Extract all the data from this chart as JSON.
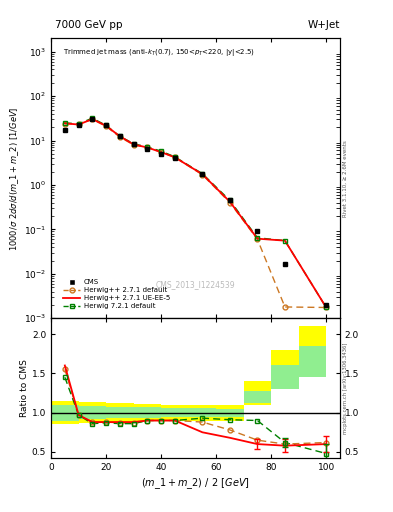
{
  "title_left": "7000 GeV pp",
  "title_right": "W+Jet",
  "inner_title": "Trimmed jet mass (anti-k_{T}(0.7), 150<p_{T}<220, |y|<2.5)",
  "ylabel_main": "1000/σ 2dσ/d(m_1 + m_2) [1/GeV]",
  "ylabel_ratio": "Ratio to CMS",
  "xlabel": "(m_1 + m_2) / 2 [GeV]",
  "watermark": "CMS_2013_I1224539",
  "right_label_main": "Rivet 3.1.10, ≥ 2.6M events",
  "right_label_ratio": "mcplots.cern.ch [arXiv:1306.3436]",
  "cms_x": [
    5,
    10,
    15,
    20,
    25,
    30,
    35,
    40,
    45,
    55,
    65,
    75,
    85,
    100
  ],
  "cms_y": [
    17.0,
    22.0,
    30.0,
    22.0,
    13.0,
    8.5,
    6.5,
    5.0,
    4.0,
    1.8,
    0.45,
    0.09,
    0.017,
    0.002
  ],
  "herwig_default_x": [
    5,
    10,
    15,
    20,
    25,
    30,
    35,
    40,
    45,
    55,
    65,
    75,
    85,
    100
  ],
  "herwig_default_y": [
    24.0,
    23.5,
    30.0,
    21.0,
    12.0,
    8.0,
    7.0,
    5.5,
    4.2,
    1.7,
    0.4,
    0.06,
    0.0018,
    0.00175
  ],
  "herwig_ueee5_x": [
    5,
    10,
    15,
    20,
    25,
    30,
    35,
    40,
    45,
    55,
    65,
    75,
    85,
    100
  ],
  "herwig_ueee5_y": [
    24.5,
    23.0,
    30.5,
    21.5,
    12.5,
    8.2,
    7.0,
    5.5,
    4.2,
    1.75,
    0.42,
    0.062,
    0.056,
    0.00175
  ],
  "herwig72_x": [
    5,
    10,
    15,
    20,
    25,
    30,
    35,
    40,
    45,
    55,
    65,
    75,
    85,
    100
  ],
  "herwig72_y": [
    25.0,
    24.0,
    32.0,
    22.0,
    12.5,
    8.5,
    7.2,
    5.8,
    4.3,
    1.8,
    0.45,
    0.065,
    0.056,
    0.00175
  ],
  "ratio_herwig_default_x": [
    5,
    10,
    15,
    20,
    25,
    30,
    35,
    40,
    45,
    55,
    65,
    75,
    85,
    100
  ],
  "ratio_herwig_default_y": [
    1.55,
    0.97,
    0.88,
    0.88,
    0.87,
    0.87,
    0.9,
    0.9,
    0.9,
    0.88,
    0.78,
    0.65,
    0.6,
    0.62
  ],
  "ratio_herwig_ueee5_x": [
    5,
    10,
    15,
    20,
    25,
    30,
    35,
    40,
    45,
    55,
    65,
    75,
    85,
    100
  ],
  "ratio_herwig_ueee5_y": [
    1.6,
    0.97,
    0.88,
    0.88,
    0.88,
    0.88,
    0.9,
    0.9,
    0.9,
    0.75,
    0.68,
    0.6,
    0.58,
    0.6
  ],
  "ratio_herwig_ueee5_yerr": [
    0.0,
    0.0,
    0.0,
    0.0,
    0.0,
    0.0,
    0.0,
    0.0,
    0.0,
    0.0,
    0.0,
    0.06,
    0.08,
    0.1
  ],
  "ratio_herwig72_x": [
    5,
    10,
    15,
    20,
    25,
    30,
    35,
    40,
    45,
    55,
    65,
    75,
    85,
    100
  ],
  "ratio_herwig72_y": [
    1.45,
    0.97,
    0.86,
    0.87,
    0.86,
    0.86,
    0.9,
    0.9,
    0.9,
    0.93,
    0.91,
    0.9,
    0.62,
    0.48
  ],
  "ratio_herwig72_yerr": [
    0.0,
    0.0,
    0.0,
    0.0,
    0.0,
    0.0,
    0.0,
    0.0,
    0.0,
    0.0,
    0.0,
    0.0,
    0.06,
    0.12
  ],
  "band_yellow_edges": [
    0,
    10,
    20,
    30,
    40,
    50,
    60,
    70,
    80,
    90,
    100
  ],
  "band_yellow_lo": [
    0.85,
    0.87,
    0.88,
    0.89,
    0.9,
    0.9,
    0.9,
    1.1,
    1.3,
    1.55,
    1.6
  ],
  "band_yellow_hi": [
    1.15,
    1.13,
    1.12,
    1.11,
    1.1,
    1.1,
    1.1,
    1.4,
    1.8,
    2.1,
    2.2
  ],
  "band_green_edges": [
    0,
    10,
    20,
    30,
    40,
    50,
    60,
    70,
    80,
    90,
    100
  ],
  "band_green_lo": [
    0.9,
    0.92,
    0.93,
    0.93,
    0.94,
    0.94,
    0.95,
    1.12,
    1.3,
    1.45,
    1.5
  ],
  "band_green_hi": [
    1.1,
    1.08,
    1.07,
    1.07,
    1.06,
    1.06,
    1.05,
    1.28,
    1.6,
    1.85,
    2.0
  ],
  "ylim_main": [
    0.001,
    2000.0
  ],
  "ylim_ratio": [
    0.42,
    2.2
  ],
  "xlim": [
    0,
    105
  ],
  "xticks": [
    0,
    20,
    40,
    60,
    80,
    100
  ],
  "yticks_ratio": [
    0.5,
    1.0,
    1.5,
    2.0
  ]
}
